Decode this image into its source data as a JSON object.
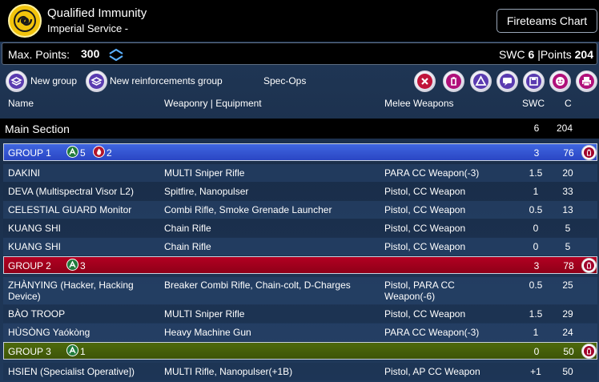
{
  "header": {
    "title": "Qualified Immunity",
    "subtitle": "Imperial Service -",
    "fireteams_label": "Fireteams Chart"
  },
  "points": {
    "max_label": "Max. Points:",
    "max_value": "300",
    "swc_label": "SWC",
    "swc_value": "6",
    "separator": "|",
    "points_label": "Points",
    "points_value": "204"
  },
  "toolbar": {
    "new_group": "New group",
    "new_reinforcements": "New reinforcements group",
    "spec_ops": "Spec-Ops"
  },
  "columns": {
    "name": "Name",
    "weaponry": "Weaponry | Equipment",
    "melee": "Melee Weapons",
    "swc": "SWC",
    "c": "C"
  },
  "section": {
    "title": "Main Section",
    "swc": "6",
    "c": "204"
  },
  "groups": [
    {
      "name": "GROUP 1",
      "regular_count": "5",
      "irregular_count": "2",
      "swc": "3",
      "c": "76",
      "units": [
        {
          "name": "DAKINI",
          "weapons": "MULTI Sniper Rifle",
          "melee": "PARA CC Weapon(-3)",
          "swc": "1.5",
          "c": "20"
        },
        {
          "name": "DEVA (Multispectral Visor L2)",
          "weapons": "Spitfire, Nanopulser",
          "melee": "Pistol, CC Weapon",
          "swc": "1",
          "c": "33"
        },
        {
          "name": "CELESTIAL GUARD Monitor",
          "weapons": "Combi Rifle, Smoke Grenade Launcher",
          "melee": "Pistol, CC Weapon",
          "swc": "0.5",
          "c": "13"
        },
        {
          "name": "KUANG SHI",
          "weapons": "Chain Rifle",
          "melee": "Pistol, CC Weapon",
          "swc": "0",
          "c": "5"
        },
        {
          "name": "KUANG SHI",
          "weapons": "Chain Rifle",
          "melee": "Pistol, CC Weapon",
          "swc": "0",
          "c": "5"
        }
      ]
    },
    {
      "name": "GROUP 2",
      "regular_count": "3",
      "swc": "3",
      "c": "78",
      "units": [
        {
          "name": "ZHÀNYING (Hacker, Hacking Device)",
          "weapons": "Breaker Combi Rifle, Chain-colt, D-Charges",
          "melee": "Pistol, PARA CC Weapon(-6)",
          "swc": "0.5",
          "c": "25"
        },
        {
          "name": "BÀO TROOP",
          "weapons": "MULTI Sniper Rifle",
          "melee": "Pistol, CC Weapon",
          "swc": "1.5",
          "c": "29"
        },
        {
          "name": "HÙSÒNG Yaókòng",
          "weapons": "Heavy Machine Gun",
          "melee": "PARA CC Weapon(-3)",
          "swc": "1",
          "c": "24"
        }
      ]
    },
    {
      "name": "GROUP 3",
      "regular_count": "1",
      "swc": "0",
      "c": "50",
      "units": [
        {
          "name": "HSIEN (Specialist Operative])",
          "weapons": "MULTI Rifle, Nanopulser(+1B)",
          "melee": "Pistol, AP CC Weapon",
          "swc": "+1",
          "c": "50"
        }
      ]
    }
  ],
  "icons": {
    "logo": "yu-jing-logo-icon",
    "stepper": "chevron-up-down-icon",
    "regular_order": "regular-order-icon",
    "irregular_order": "irregular-order-icon",
    "delete_group": "trash-icon"
  },
  "colors": {
    "group1": "#2f4fd0",
    "group2": "#9c001c",
    "group3": "#465f0a",
    "logo": "#f2c40c"
  }
}
